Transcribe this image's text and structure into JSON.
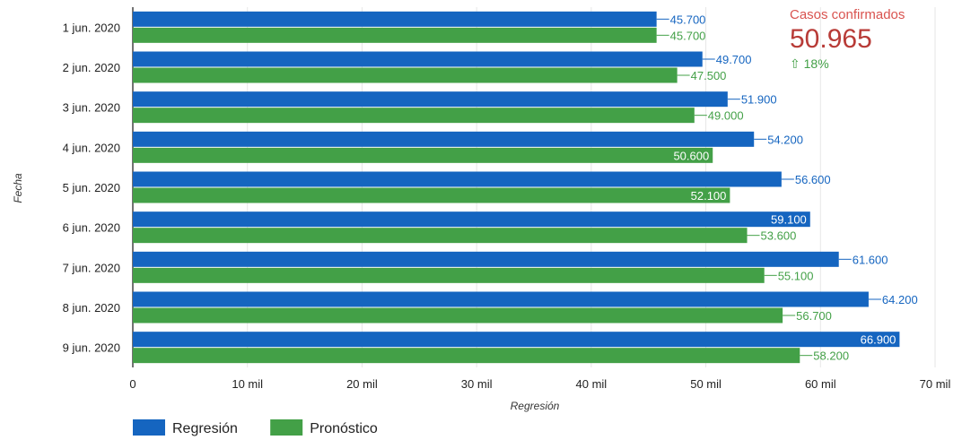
{
  "chart_data": {
    "type": "bar",
    "orientation": "horizontal",
    "categories": [
      "1 jun. 2020",
      "2 jun. 2020",
      "3 jun. 2020",
      "4 jun. 2020",
      "5 jun. 2020",
      "6 jun. 2020",
      "7 jun. 2020",
      "8 jun. 2020",
      "9 jun. 2020"
    ],
    "series": [
      {
        "name": "Regresión",
        "color": "#1565c0",
        "values": [
          45700,
          49700,
          51900,
          54200,
          56600,
          59100,
          61600,
          64200,
          66900
        ],
        "labels": [
          "45.700",
          "49.700",
          "51.900",
          "54.200",
          "56.600",
          "59.100",
          "61.600",
          "64.200",
          "66.900"
        ]
      },
      {
        "name": "Pronóstico",
        "color": "#43a047",
        "values": [
          45700,
          47500,
          49000,
          50600,
          52100,
          53600,
          55100,
          56700,
          58200
        ],
        "labels": [
          "45.700",
          "47.500",
          "49.000",
          "50.600",
          "52.100",
          "53.600",
          "55.100",
          "56.700",
          "58.200"
        ]
      }
    ],
    "xlabel": "Regresión",
    "ylabel": "Fecha",
    "xlim": [
      0,
      70000
    ],
    "xticks": [
      0,
      10000,
      20000,
      30000,
      40000,
      50000,
      60000,
      70000
    ],
    "xtick_labels": [
      "0",
      "10 mil",
      "20 mil",
      "30 mil",
      "40 mil",
      "50 mil",
      "60 mil",
      "70 mil"
    ],
    "grid": true,
    "legend_position": "bottom-left"
  },
  "kpi": {
    "label": "Casos confirmados",
    "value": "50.965",
    "change": "18%",
    "change_icon": "arrow-up-icon",
    "label_color": "#d9534f",
    "value_color": "#b83b37",
    "change_color": "#43a047"
  }
}
